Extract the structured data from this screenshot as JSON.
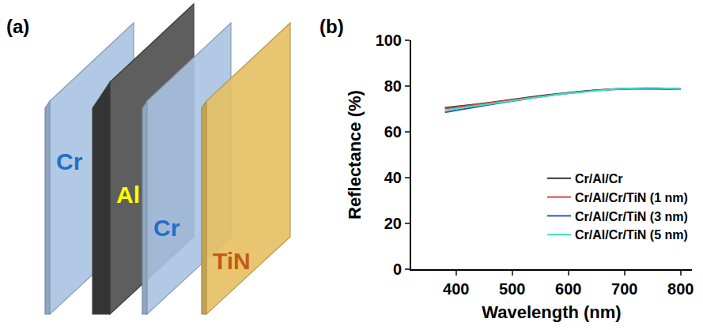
{
  "diagram": {
    "panel": "(a)",
    "layers": [
      {
        "label": "Cr",
        "color": "#a9c3e2",
        "label_color": "#1f6fc8"
      },
      {
        "label": "Al",
        "color": "#5e5e5e",
        "label_color": "#ffff00"
      },
      {
        "label": "Cr",
        "color": "#a9c3e2",
        "label_color": "#1f6fc8"
      },
      {
        "label": "TiN",
        "color": "#e6c062",
        "label_color": "#c55a11"
      }
    ]
  },
  "chart_data": {
    "type": "line",
    "panel": "(b)",
    "x_label": "Wavelength (nm)",
    "y_label": "Reflectance (%)",
    "x": [
      380,
      400,
      420,
      440,
      460,
      480,
      500,
      520,
      540,
      560,
      580,
      600,
      620,
      640,
      660,
      680,
      700,
      720,
      740,
      760,
      780,
      800
    ],
    "series": [
      {
        "name": "Cr/Al/Cr",
        "color": "#333333",
        "values": [
          70.5,
          71.0,
          71.6,
          72.2,
          72.8,
          73.5,
          74.1,
          74.8,
          75.4,
          76.0,
          76.6,
          77.1,
          77.6,
          78.0,
          78.4,
          78.7,
          78.9,
          79.0,
          79.0,
          78.9,
          78.8,
          78.7
        ]
      },
      {
        "name": "Cr/Al/Cr/TiN (1 nm)",
        "color": "#f03c3c",
        "values": [
          70.1,
          70.7,
          71.3,
          72.0,
          72.6,
          73.3,
          73.9,
          74.6,
          75.2,
          75.8,
          76.4,
          77.0,
          77.5,
          77.9,
          78.3,
          78.6,
          78.8,
          78.9,
          78.9,
          78.8,
          78.7,
          78.6
        ]
      },
      {
        "name": "Cr/Al/Cr/TiN (3 nm)",
        "color": "#1f5fd0",
        "values": [
          68.5,
          69.4,
          70.3,
          71.1,
          71.9,
          72.7,
          73.5,
          74.3,
          75.0,
          75.7,
          76.3,
          76.9,
          77.4,
          77.9,
          78.3,
          78.6,
          78.9,
          79.0,
          79.0,
          79.0,
          78.9,
          78.8
        ]
      },
      {
        "name": "Cr/Al/Cr/TiN (5 nm)",
        "color": "#3fe0b8",
        "values": [
          69.5,
          70.2,
          70.9,
          71.6,
          72.3,
          73.0,
          73.7,
          74.4,
          75.1,
          75.7,
          76.3,
          76.8,
          77.3,
          77.8,
          78.2,
          78.6,
          78.9,
          79.1,
          79.2,
          79.1,
          79.0,
          78.7
        ]
      }
    ],
    "xlim": [
      320,
      820
    ],
    "xticks": [
      400,
      500,
      600,
      700,
      800
    ],
    "ylim": [
      0,
      100
    ],
    "yticks": [
      0,
      20,
      40,
      60,
      80,
      100
    ],
    "grid": false,
    "legend": "lower right"
  }
}
